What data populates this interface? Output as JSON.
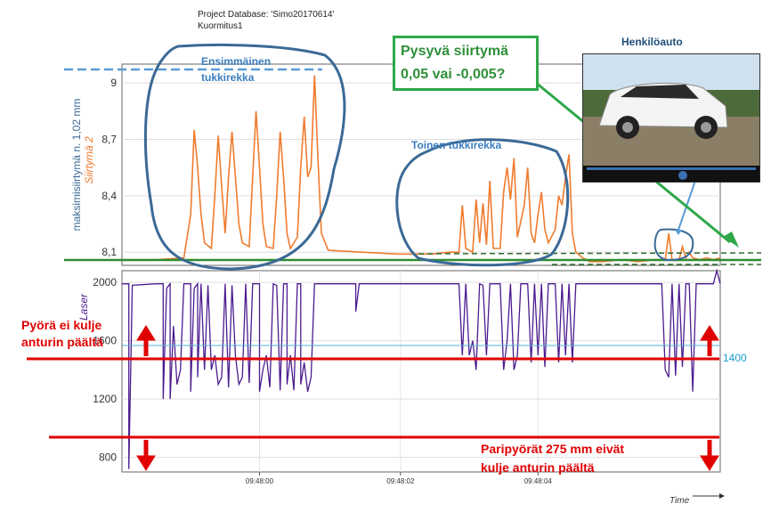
{
  "header": {
    "project": "Project Database: 'Simo20170614'",
    "measurement": "Kuormitus1"
  },
  "annotations": {
    "first_bogie": [
      "Ensimmäinen",
      "tukkirekka"
    ],
    "second_bogie": "Toinen tukkirekka",
    "permanent_shift": [
      "Pysyvä siirtymä",
      "0,05 vai -0,005?"
    ],
    "passenger_car": "Henkilöauto",
    "wheel_not_over": [
      "Pyörä ei kulje",
      "anturin päältä"
    ],
    "pair_wheels": [
      "Paripyörät 275 mm eivät",
      "kulje anturin päältä"
    ],
    "max_shift_label": "maksimisiirtymä n. 1,02 mm",
    "level_1400": "1400"
  },
  "colors": {
    "siirtyma": "#f07b2e",
    "laser": "#4b1b8f",
    "annotation_blue": "#3b6a96",
    "green": "#2ea84a",
    "red": "#e00000"
  },
  "chart_data": [
    {
      "type": "line",
      "ylabel": "Siirtymä 2",
      "y_ticks": [
        "8,1",
        "8,4",
        "8,7",
        "9"
      ],
      "ylim": [
        8.03,
        9.1
      ],
      "series": [
        {
          "name": "Siirtymä 2",
          "points": [
            [
              0,
              8.06
            ],
            [
              10,
              8.06
            ],
            [
              18,
              8.07
            ],
            [
              20,
              8.3
            ],
            [
              21,
              8.75
            ],
            [
              22,
              8.55
            ],
            [
              23,
              8.3
            ],
            [
              24,
              8.15
            ],
            [
              26,
              8.12
            ],
            [
              27,
              8.4
            ],
            [
              28,
              8.72
            ],
            [
              29,
              8.45
            ],
            [
              30,
              8.2
            ],
            [
              31,
              8.5
            ],
            [
              32,
              8.74
            ],
            [
              33,
              8.5
            ],
            [
              34,
              8.25
            ],
            [
              35,
              8.15
            ],
            [
              37,
              8.13
            ],
            [
              38,
              8.5
            ],
            [
              39,
              8.85
            ],
            [
              40,
              8.55
            ],
            [
              41,
              8.25
            ],
            [
              42,
              8.13
            ],
            [
              44,
              8.12
            ],
            [
              45,
              8.4
            ],
            [
              46,
              8.74
            ],
            [
              47,
              8.5
            ],
            [
              48,
              8.2
            ],
            [
              49,
              8.12
            ],
            [
              51,
              8.18
            ],
            [
              52,
              8.55
            ],
            [
              53,
              8.82
            ],
            [
              54,
              8.5
            ],
            [
              55,
              8.55
            ],
            [
              56,
              9.04
            ],
            [
              57,
              8.6
            ],
            [
              58,
              8.2
            ],
            [
              60,
              8.11
            ],
            [
              70,
              8.1
            ],
            [
              80,
              8.09
            ],
            [
              90,
              8.09
            ],
            [
              95,
              8.1
            ],
            [
              98,
              8.1
            ],
            [
              99,
              8.35
            ],
            [
              100,
              8.12
            ],
            [
              102,
              8.1
            ],
            [
              103,
              8.38
            ],
            [
              104,
              8.15
            ],
            [
              105,
              8.36
            ],
            [
              106,
              8.14
            ],
            [
              107,
              8.48
            ],
            [
              108,
              8.12
            ],
            [
              110,
              8.12
            ],
            [
              111,
              8.42
            ],
            [
              112,
              8.55
            ],
            [
              113,
              8.38
            ],
            [
              114,
              8.6
            ],
            [
              115,
              8.18
            ],
            [
              117,
              8.35
            ],
            [
              118,
              8.55
            ],
            [
              119,
              8.2
            ],
            [
              120,
              8.15
            ],
            [
              121,
              8.3
            ],
            [
              122,
              8.42
            ],
            [
              123,
              8.22
            ],
            [
              124,
              8.15
            ],
            [
              126,
              8.22
            ],
            [
              127,
              8.4
            ],
            [
              128,
              8.35
            ],
            [
              129,
              8.5
            ],
            [
              130,
              8.62
            ],
            [
              131,
              8.2
            ],
            [
              132,
              8.1
            ],
            [
              134,
              8.07
            ],
            [
              136,
              8.05
            ],
            [
              140,
              8.05
            ],
            [
              145,
              8.06
            ],
            [
              150,
              8.05
            ],
            [
              155,
              8.06
            ],
            [
              158,
              8.06
            ],
            [
              159,
              8.2
            ],
            [
              160,
              8.06
            ],
            [
              162,
              8.06
            ],
            [
              163,
              8.13
            ],
            [
              164,
              8.07
            ],
            [
              165,
              8.1
            ],
            [
              166,
              8.07
            ],
            [
              168,
              8.06
            ],
            [
              170,
              8.07
            ],
            [
              172,
              8.06
            ],
            [
              174,
              8.07
            ]
          ]
        }
      ]
    },
    {
      "type": "line",
      "ylabel": "Laser",
      "y_ticks": [
        "800",
        "1200",
        "1600",
        "2000"
      ],
      "ylim": [
        700,
        2080
      ],
      "xlabel": "Time",
      "x_ticks": [
        "09:48:00",
        "09:48:02",
        "09:48:04"
      ],
      "series": [
        {
          "name": "Laser",
          "segments": [
            [
              0,
              1990
            ],
            [
              2,
              1990
            ],
            [
              2,
              1000
            ],
            [
              2,
              720
            ],
            [
              3,
              1980
            ],
            [
              10,
              1990
            ],
            [
              12,
              1990
            ],
            [
              12,
              1200
            ],
            [
              13,
              1960
            ],
            [
              14,
              1990
            ],
            [
              14,
              1200
            ],
            [
              15,
              1700
            ],
            [
              16,
              1300
            ],
            [
              17,
              1400
            ],
            [
              18,
              1990
            ],
            [
              20,
              1990
            ],
            [
              20,
              1250
            ],
            [
              21,
              1960
            ],
            [
              22,
              1990
            ],
            [
              22,
              1350
            ],
            [
              23,
              1990
            ],
            [
              24,
              1400
            ],
            [
              25,
              1980
            ],
            [
              26,
              1400
            ],
            [
              27,
              1500
            ],
            [
              28,
              1300
            ],
            [
              29,
              1350
            ],
            [
              30,
              1990
            ],
            [
              31,
              1280
            ],
            [
              32,
              1980
            ],
            [
              33,
              1500
            ],
            [
              34,
              1300
            ],
            [
              35,
              1350
            ],
            [
              36,
              1990
            ],
            [
              37,
              1310
            ],
            [
              38,
              1990
            ],
            [
              40,
              1990
            ],
            [
              40,
              1250
            ],
            [
              41,
              1400
            ],
            [
              42,
              1500
            ],
            [
              43,
              1280
            ],
            [
              44,
              1990
            ],
            [
              45,
              1980
            ],
            [
              46,
              1260
            ],
            [
              47,
              1990
            ],
            [
              48,
              1990
            ],
            [
              48,
              1300
            ],
            [
              49,
              1500
            ],
            [
              50,
              1260
            ],
            [
              51,
              1990
            ],
            [
              52,
              1990
            ],
            [
              52,
              1300
            ],
            [
              53,
              1450
            ],
            [
              54,
              1250
            ],
            [
              55,
              1350
            ],
            [
              56,
              1990
            ],
            [
              58,
              1990
            ],
            [
              60,
              1990
            ],
            [
              65,
              1990
            ],
            [
              68,
              1990
            ],
            [
              68,
              1800
            ],
            [
              69,
              1990
            ],
            [
              75,
              1990
            ],
            [
              80,
              1990
            ],
            [
              85,
              1990
            ],
            [
              90,
              1990
            ],
            [
              95,
              1990
            ],
            [
              98,
              1990
            ],
            [
              99,
              1500
            ],
            [
              100,
              1990
            ],
            [
              101,
              1500
            ],
            [
              102,
              1600
            ],
            [
              103,
              1400
            ],
            [
              104,
              1990
            ],
            [
              105,
              1980
            ],
            [
              106,
              1500
            ],
            [
              107,
              1990
            ],
            [
              108,
              1990
            ],
            [
              110,
              1990
            ],
            [
              111,
              1400
            ],
            [
              112,
              1600
            ],
            [
              113,
              1990
            ],
            [
              114,
              1400
            ],
            [
              115,
              1500
            ],
            [
              116,
              1990
            ],
            [
              118,
              1990
            ],
            [
              119,
              1450
            ],
            [
              120,
              1990
            ],
            [
              121,
              1500
            ],
            [
              122,
              1990
            ],
            [
              123,
              1420
            ],
            [
              124,
              1990
            ],
            [
              126,
              1990
            ],
            [
              127,
              1450
            ],
            [
              128,
              1990
            ],
            [
              129,
              1500
            ],
            [
              130,
              1990
            ],
            [
              131,
              1450
            ],
            [
              132,
              1990
            ],
            [
              134,
              1990
            ],
            [
              140,
              1990
            ],
            [
              145,
              1990
            ],
            [
              150,
              1990
            ],
            [
              155,
              1990
            ],
            [
              157,
              1990
            ],
            [
              158,
              1400
            ],
            [
              159,
              1350
            ],
            [
              160,
              1990
            ],
            [
              161,
              1360
            ],
            [
              162,
              1990
            ],
            [
              163,
              1420
            ],
            [
              164,
              1990
            ],
            [
              165,
              1990
            ],
            [
              166,
              1250
            ],
            [
              167,
              1990
            ],
            [
              170,
              1990
            ],
            [
              172,
              1990
            ],
            [
              173,
              2080
            ],
            [
              174,
              1990
            ]
          ]
        }
      ]
    }
  ]
}
